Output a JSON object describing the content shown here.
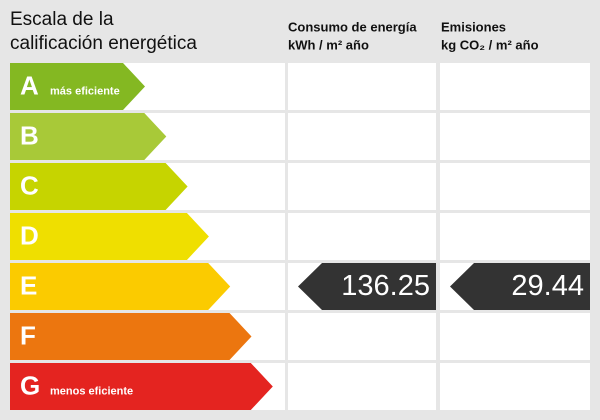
{
  "header": {
    "title": [
      "Escala de la",
      "calificación energética"
    ],
    "consumption": {
      "title": "Consumo de energía",
      "unit": "kWh / m² año"
    },
    "emissions": {
      "title": "Emisiones",
      "unit": "kg CO₂ / m² año"
    }
  },
  "ratings": [
    {
      "letter": "A",
      "note": "más eficiente",
      "color": "#84b822"
    },
    {
      "letter": "B",
      "color": "#a8c938"
    },
    {
      "letter": "C",
      "color": "#c6d400"
    },
    {
      "letter": "D",
      "color": "#efdf00"
    },
    {
      "letter": "E",
      "color": "#fbcb00",
      "consumption": 136.25,
      "emissions": 29.44
    },
    {
      "letter": "F",
      "color": "#ec760f"
    },
    {
      "letter": "G",
      "note": "menos eficiente",
      "color": "#e42420"
    }
  ]
}
